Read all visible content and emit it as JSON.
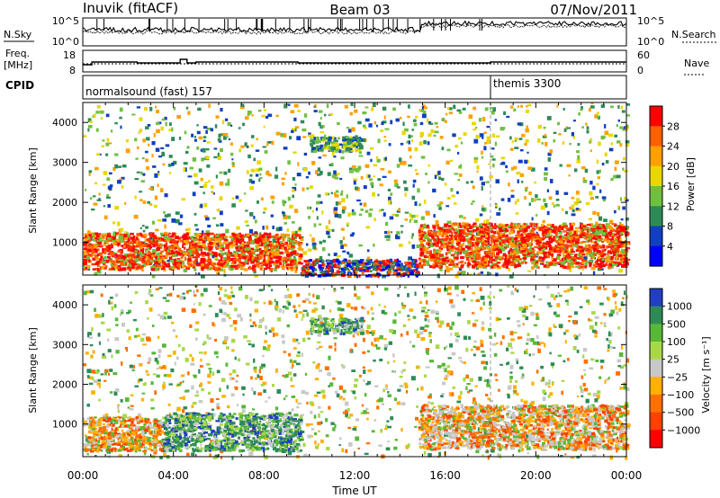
{
  "header": {
    "station": "Inuvik (fitACF)",
    "beam": "Beam 03",
    "date": "07/Nov/2011"
  },
  "panels": {
    "nsky": {
      "label": "N.Sky",
      "ticks": [
        "10^5",
        "10^0"
      ]
    },
    "nsearch": {
      "label": "N.Search",
      "ticks": [
        "10^5",
        "10^0"
      ]
    },
    "freq": {
      "label1": "Freq.",
      "label2": "[MHz]",
      "ticks": [
        "18",
        "8"
      ]
    },
    "nave": {
      "label": "Nave",
      "ticks": [
        "60",
        "0"
      ]
    },
    "cpid": {
      "label": "CPID",
      "segments": [
        {
          "name": "normalsound (fast) 157",
          "start_h": 0
        },
        {
          "name": "themis 3300",
          "start_h": 18.0
        }
      ]
    }
  },
  "chart_data": [
    {
      "type": "heatmap",
      "title": "",
      "xlabel": "Time UT",
      "ylabel": "Slant Range [km]",
      "x_ticks": [
        "00:00",
        "04:00",
        "08:00",
        "12:00",
        "16:00",
        "20:00",
        "00:00"
      ],
      "xlim_hours": [
        0,
        24
      ],
      "y_ticks": [
        1000,
        2000,
        3000,
        4000
      ],
      "ylim": [
        180,
        4500
      ],
      "colorbar": {
        "label": "Power [dB]",
        "ticks": [
          "28",
          "24",
          "20",
          "16",
          "12",
          "8",
          "4"
        ],
        "colors": [
          "#ff0000",
          "#ff6000",
          "#ffa000",
          "#e8d800",
          "#70c040",
          "#2e8b57",
          "#1040c0",
          "#0000ff"
        ]
      },
      "features": [
        {
          "t0": 0.0,
          "t1": 9.6,
          "r0": 350,
          "r1": 1250,
          "level": "high"
        },
        {
          "t0": 9.6,
          "t1": 14.8,
          "r0": 180,
          "r1": 600,
          "level": "mixed"
        },
        {
          "t0": 14.8,
          "t1": 24.0,
          "r0": 400,
          "r1": 1500,
          "level": "high"
        },
        {
          "t0": 10.0,
          "t1": 12.3,
          "r0": 3300,
          "r1": 3700,
          "level": "medium"
        }
      ]
    },
    {
      "type": "heatmap",
      "title": "",
      "xlabel": "Time UT",
      "ylabel": "Slant Range [km]",
      "x_ticks": [
        "00:00",
        "04:00",
        "08:00",
        "12:00",
        "16:00",
        "20:00",
        "00:00"
      ],
      "xlim_hours": [
        0,
        24
      ],
      "y_ticks": [
        1000,
        2000,
        3000,
        4000
      ],
      "ylim": [
        180,
        4500
      ],
      "colorbar": {
        "label": "Velocity [m s⁻¹]",
        "ticks": [
          "1000",
          "500",
          "100",
          "25",
          "−25",
          "−100",
          "−500",
          "−1000"
        ],
        "colors": [
          "#2040c0",
          "#2e8b57",
          "#58b838",
          "#a8d848",
          "#c8c8c8",
          "#ffb000",
          "#ff7000",
          "#ff4000",
          "#ff0000"
        ]
      },
      "features": [
        {
          "t0": 0.0,
          "t1": 3.5,
          "r0": 350,
          "r1": 1200,
          "level": "negative"
        },
        {
          "t0": 3.5,
          "t1": 9.6,
          "r0": 350,
          "r1": 1300,
          "level": "positive"
        },
        {
          "t0": 14.8,
          "t1": 24.0,
          "r0": 400,
          "r1": 1500,
          "level": "mixed"
        },
        {
          "t0": 10.0,
          "t1": 12.3,
          "r0": 3300,
          "r1": 3700,
          "level": "positive"
        }
      ]
    }
  ]
}
